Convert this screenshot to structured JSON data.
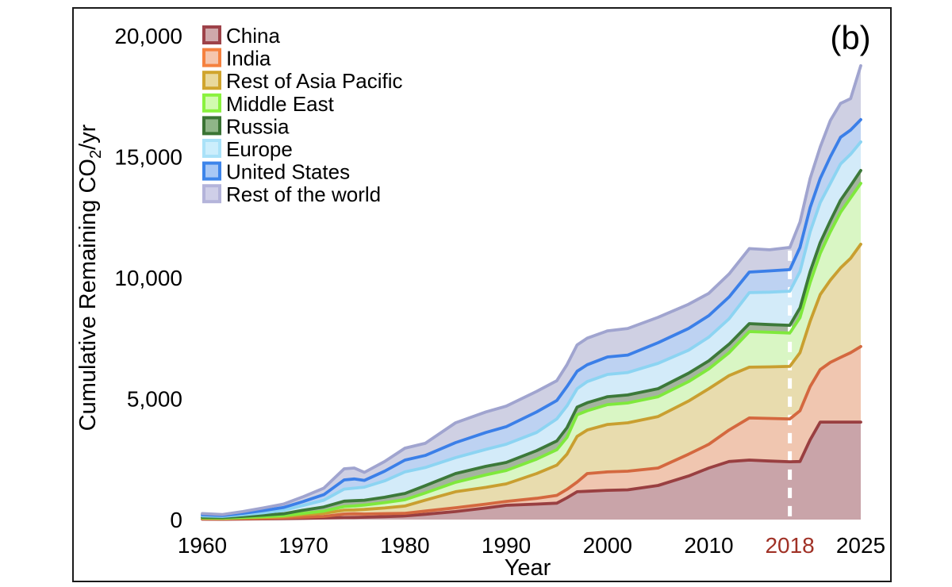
{
  "figure": {
    "panel_label": "(b)",
    "background": "#ffffff",
    "border_color": "#1a1a1a"
  },
  "chart_data": {
    "type": "area",
    "stacked": true,
    "title": "",
    "xlabel": "Year",
    "ylabel": {
      "pre": "Cumulative Remaining CO",
      "sub": "2",
      "post": "/yr",
      "flat": "Cumulative Remaining CO2/yr"
    },
    "xlim": [
      1960,
      2025
    ],
    "ylim": [
      0,
      20000
    ],
    "grid": false,
    "legend_position": "top-left",
    "x_ticks": [
      {
        "year": 1960,
        "label": "1960",
        "color": "#000000"
      },
      {
        "year": 1970,
        "label": "1970",
        "color": "#000000"
      },
      {
        "year": 1980,
        "label": "1980",
        "color": "#000000"
      },
      {
        "year": 1990,
        "label": "1990",
        "color": "#000000"
      },
      {
        "year": 2000,
        "label": "2000",
        "color": "#000000"
      },
      {
        "year": 2010,
        "label": "2010",
        "color": "#000000"
      },
      {
        "year": 2018,
        "label": "2018",
        "color": "#a03126"
      },
      {
        "year": 2025,
        "label": "2025",
        "color": "#000000"
      }
    ],
    "y_ticks": [
      {
        "value": 0,
        "label": "0"
      },
      {
        "value": 5000,
        "label": "5,000"
      },
      {
        "value": 10000,
        "label": "10,000"
      },
      {
        "value": 15000,
        "label": "15,000"
      },
      {
        "value": 20000,
        "label": "20,000"
      }
    ],
    "annotation": {
      "type": "dashed-vline",
      "year": 2018,
      "color": "#ffffff"
    },
    "years": [
      1960,
      1962,
      1964,
      1966,
      1968,
      1970,
      1972,
      1974,
      1975,
      1976,
      1978,
      1980,
      1982,
      1985,
      1988,
      1990,
      1993,
      1995,
      1996,
      1997,
      1998,
      2000,
      2002,
      2005,
      2008,
      2010,
      2012,
      2014,
      2016,
      2018,
      2019,
      2020,
      2021,
      2022,
      2023,
      2024,
      2025
    ],
    "series": [
      {
        "name": "China",
        "line_color": "#993f41",
        "fill_color": "#c9a4a9",
        "legend_border": "#9e4249",
        "legend_fill": "#cfa8ab",
        "values": [
          15,
          12,
          20,
          30,
          38,
          50,
          65,
          85,
          90,
          100,
          120,
          150,
          220,
          330,
          480,
          590,
          640,
          680,
          900,
          1150,
          1170,
          1210,
          1230,
          1410,
          1800,
          2130,
          2400,
          2460,
          2420,
          2390,
          2400,
          3300,
          4030,
          4030,
          4030,
          4030,
          4030
        ]
      },
      {
        "name": "India",
        "line_color": "#d4683f",
        "fill_color": "#f0c6b0",
        "legend_border": "#f5813f",
        "legend_fill": "#f5c6ae",
        "values": [
          15,
          13,
          18,
          20,
          27,
          50,
          65,
          145,
          150,
          130,
          125,
          110,
          130,
          160,
          160,
          160,
          240,
          320,
          350,
          400,
          730,
          760,
          770,
          720,
          900,
          980,
          1300,
          1740,
          1760,
          1770,
          2100,
          2200,
          2170,
          2470,
          2670,
          2870,
          3120
        ]
      },
      {
        "name": "Rest of Asia Pacific",
        "line_color": "#c99f30",
        "fill_color": "#e8dcae",
        "legend_border": "#d0a52e",
        "legend_fill": "#e9d99d",
        "values": [
          25,
          20,
          30,
          40,
          55,
          100,
          130,
          160,
          160,
          190,
          235,
          300,
          450,
          660,
          690,
          725,
          1020,
          1250,
          1450,
          1890,
          1800,
          1960,
          2000,
          2130,
          2200,
          2300,
          2250,
          2100,
          2130,
          2170,
          2400,
          2700,
          3100,
          3400,
          3700,
          3900,
          4230
        ]
      },
      {
        "name": "Middle East",
        "line_color": "#7fe93c",
        "fill_color": "#d9f6c4",
        "legend_border": "#8af23f",
        "legend_fill": "#d2fbb0",
        "values": [
          15,
          15,
          22,
          30,
          40,
          60,
          90,
          150,
          160,
          180,
          220,
          260,
          300,
          390,
          520,
          555,
          600,
          640,
          700,
          890,
          800,
          820,
          820,
          820,
          800,
          820,
          950,
          1470,
          1430,
          1380,
          1450,
          1600,
          1700,
          2000,
          2300,
          2500,
          2520
        ]
      },
      {
        "name": "Russia",
        "line_color": "#3c7939",
        "fill_color": "#a4b49e",
        "legend_border": "#3a7434",
        "legend_fill": "#8fb588",
        "values": [
          25,
          25,
          40,
          60,
          80,
          130,
          170,
          220,
          220,
          200,
          220,
          260,
          300,
          360,
          350,
          330,
          350,
          360,
          400,
          320,
          330,
          330,
          330,
          330,
          350,
          330,
          350,
          330,
          320,
          320,
          400,
          450,
          450,
          450,
          500,
          500,
          530
        ]
      },
      {
        "name": "Europe",
        "line_color": "#8cd4f2",
        "fill_color": "#d3ebf9",
        "legend_border": "#aae2f8",
        "legend_fill": "#cceefc",
        "values": [
          55,
          45,
          70,
          100,
          140,
          200,
          280,
          500,
          520,
          540,
          680,
          890,
          750,
          660,
          700,
          755,
          750,
          910,
          900,
          760,
          870,
          920,
          930,
          1050,
          950,
          980,
          1050,
          1280,
          1340,
          1410,
          1500,
          1650,
          1650,
          1550,
          1500,
          1300,
          1180
        ]
      },
      {
        "name": "United States",
        "line_color": "#3b7fe8",
        "fill_color": "#bdd2f2",
        "legend_border": "#3d85ea",
        "legend_fill": "#a8c8f5",
        "values": [
          50,
          40,
          60,
          90,
          120,
          160,
          230,
          380,
          380,
          280,
          400,
          490,
          500,
          620,
          700,
          725,
          850,
          760,
          800,
          720,
          700,
          720,
          720,
          850,
          900,
          890,
          900,
          850,
          880,
          890,
          1000,
          1000,
          1000,
          1100,
          1100,
          1000,
          920
        ]
      },
      {
        "name": "Rest of the world",
        "line_color": "#a0a4cf",
        "fill_color": "#cfd0e3",
        "legend_border": "#b4b4da",
        "legend_fill": "#cfcfe8",
        "values": [
          50,
          40,
          70,
          110,
          140,
          200,
          270,
          460,
          450,
          330,
          400,
          490,
          500,
          820,
          850,
          850,
          850,
          820,
          900,
          1090,
          1100,
          1080,
          1100,
          1050,
          1000,
          920,
          950,
          970,
          870,
          920,
          1050,
          1200,
          1300,
          1500,
          1400,
          1300,
          2230
        ]
      }
    ]
  }
}
